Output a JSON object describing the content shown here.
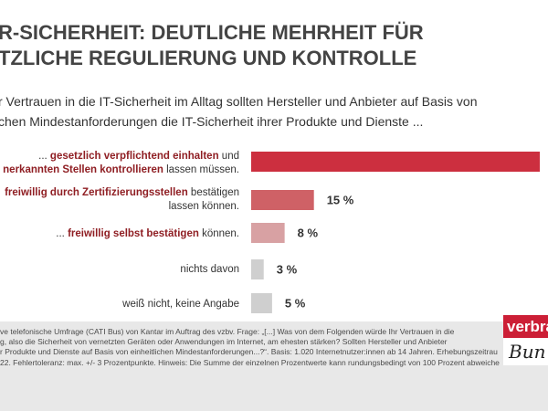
{
  "title": "R-SICHERHEIT: DEUTLICHE MEHRHEIT FÜR\nTZLICHE REGULIERUNG UND KONTROLLE",
  "subtitle": "r Vertrauen in die IT-Sicherheit im Alltag sollten Hersteller und Anbieter auf Basis von\nchen Mindestanforderungen die IT-Sicherheit ihrer Produkte und Dienste ...",
  "rows": [
    {
      "line1_pre": "... ",
      "line1_bold": "gesetzlich verpflichtend einhalten",
      "line1_post": " und",
      "line2_bold": "nerkannten Stellen kontrollieren",
      "line2_post": " lassen müssen."
    },
    {
      "line1_pre": "",
      "line1_bold": "freiwillig durch Zertifizierungsstellen",
      "line1_post": " bestätigen",
      "line2_bold": "",
      "line2_post": "lassen können."
    },
    {
      "line1_pre": "... ",
      "line1_bold": "freiwillig selbst bestätigen",
      "line1_post": " können.",
      "line2_bold": "",
      "line2_post": ""
    },
    {
      "line1_pre": "nichts davon",
      "line1_bold": "",
      "line1_post": "",
      "line2_bold": "",
      "line2_post": ""
    },
    {
      "line1_pre": "weiß nicht, keine Angabe",
      "line1_bold": "",
      "line1_post": "",
      "line2_bold": "",
      "line2_post": ""
    }
  ],
  "chart_data": {
    "type": "bar",
    "orientation": "horizontal",
    "categories": [
      "... gesetzlich verpflichtend einhalten und nerkannten Stellen kontrollieren lassen müssen.",
      "freiwillig durch Zertifizierungsstellen bestätigen lassen können.",
      "... freiwillig selbst bestätigen können.",
      "nichts davon",
      "weiß nicht, keine Angabe"
    ],
    "values": [
      69,
      15,
      8,
      3,
      5
    ],
    "value_labels": [
      "",
      "15 %",
      "8 %",
      "3 %",
      "5 %"
    ],
    "colors": [
      "#cc2f3f",
      "#cf6166",
      "#d8a1a3",
      "#cfcfcf",
      "#cfcfcf"
    ],
    "xlim": [
      0,
      69
    ]
  },
  "footer": {
    "note": "ve telefonische Umfrage (CATI Bus) von Kantar im Auftrag des vzbv. Frage: „[...] Was von dem Folgenden würde Ihr Vertrauen in die\ng, also die Sicherheit von vernetzten Geräten oder Anwendungen im Internet, am ehesten stärken? Sollten Hersteller und Anbieter\nr Produkte und Dienste auf Basis von einheitlichen Mindestanforderungen...?“. Basis: 1.020 Internetnutzer:innen ab 14 Jahren. Erhebungszeitrau\n22. Fehlertoleranz: max. +/- 3 Prozentpunkte. Hinweis: Die Summe der einzelnen Prozentwerte kann rundungsbedingt von 100 Prozent abweiche"
  },
  "logo": {
    "top": "verbrau",
    "bottom": "Bun"
  }
}
